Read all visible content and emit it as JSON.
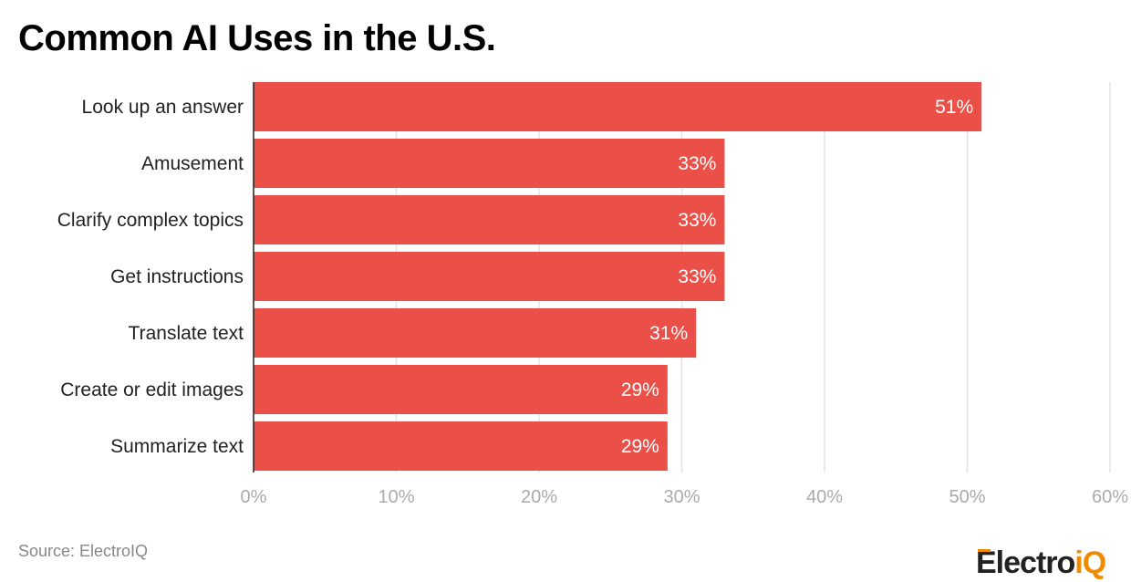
{
  "chart_data": {
    "type": "bar",
    "orientation": "horizontal",
    "title": "Common AI Uses in the U.S.",
    "categories": [
      "Look up an answer",
      "Amusement",
      "Clarify complex topics",
      "Get instructions",
      "Translate text",
      "Create or edit images",
      "Summarize text"
    ],
    "values": [
      51,
      33,
      33,
      33,
      31,
      29,
      29
    ],
    "data_labels": [
      "51%",
      "33%",
      "33%",
      "33%",
      "31%",
      "29%",
      "29%"
    ],
    "xlim": [
      0,
      60
    ],
    "xticks": [
      0,
      10,
      20,
      30,
      40,
      50,
      60
    ],
    "xtick_labels": [
      "0%",
      "10%",
      "20%",
      "30%",
      "40%",
      "50%",
      "60%"
    ],
    "grid": "vertical",
    "bar_color": "#eb5048"
  },
  "source": "Source: ElectroIQ",
  "logo": {
    "text_main": "Electro",
    "text_accent": "iQ",
    "accent_color": "#f08a00"
  }
}
